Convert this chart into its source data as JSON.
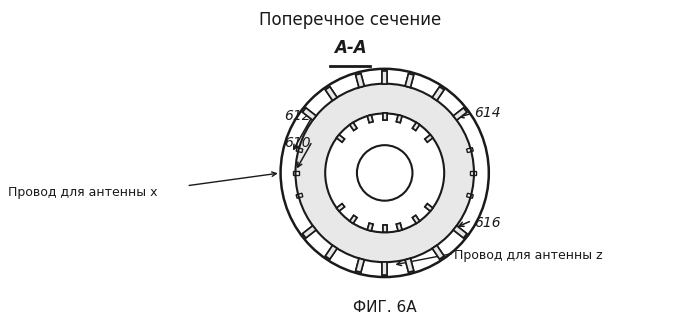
{
  "title": "Поперечное сечение",
  "section_label": "А-А",
  "fig_label": "ФИГ. 6А",
  "label_612": "612",
  "label_610": "610",
  "label_614": "614",
  "label_616": "616",
  "text_antenna_x": "Провод для антенны x",
  "text_antenna_z": "Провод для антенны z",
  "bg_color": "#ffffff",
  "line_color": "#1a1a1a"
}
